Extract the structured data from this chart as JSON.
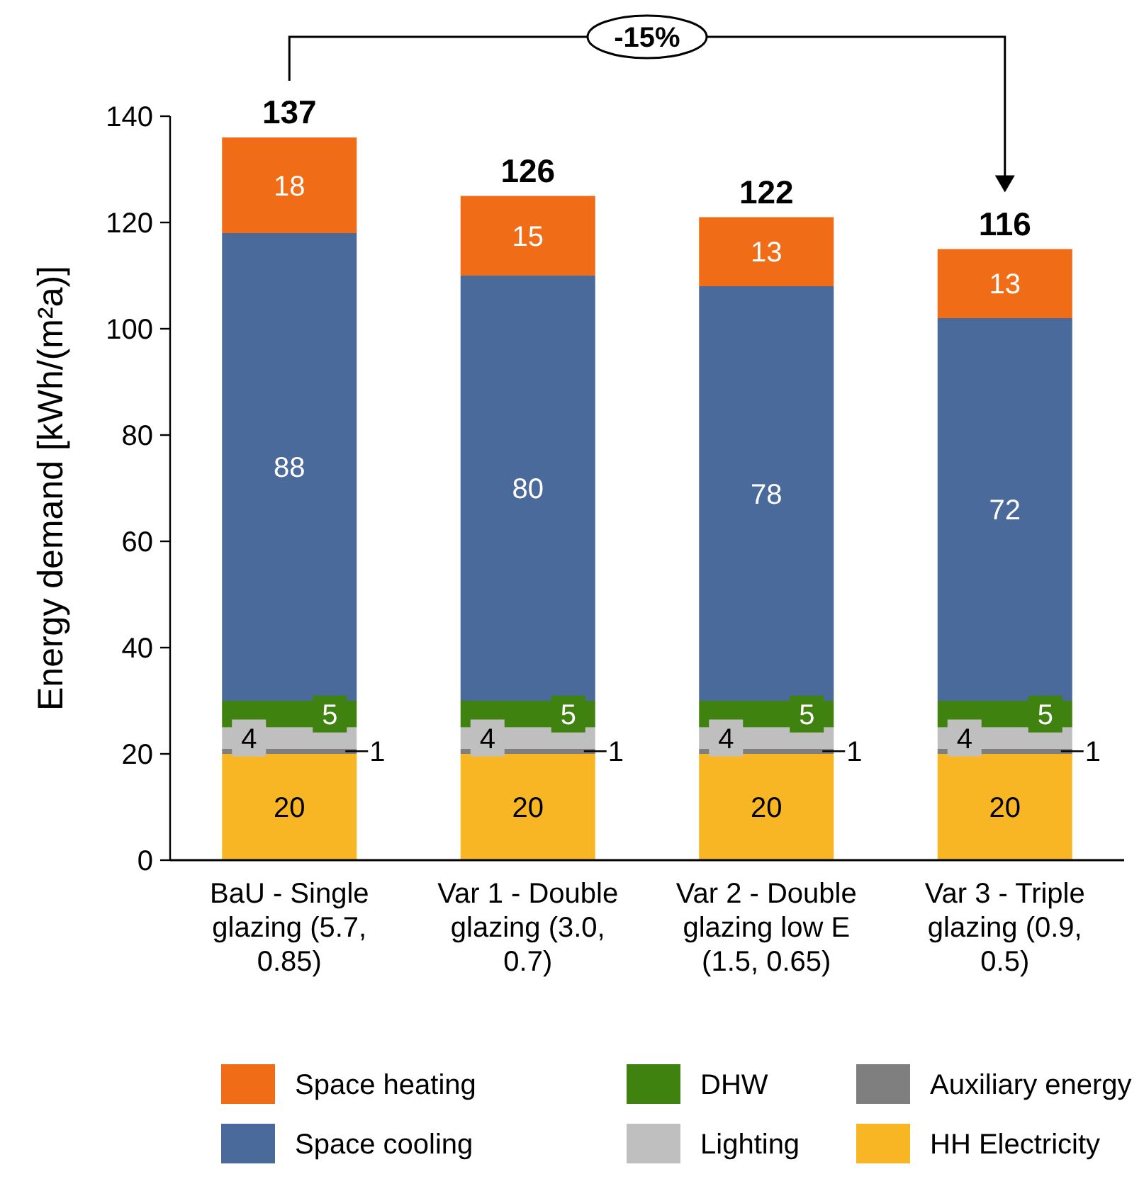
{
  "chart_data": {
    "type": "bar",
    "stacked": true,
    "ylabel": "Energy demand [kWh/(m²a)]",
    "categories": [
      "BaU - Single glazing (5.7, 0.85)",
      "Var 1 - Double glazing (3.0, 0.7)",
      "Var 2 - Double glazing low E (1.5, 0.65)",
      "Var 3 - Triple glazing (0.9, 0.5)"
    ],
    "series": [
      {
        "name": "HH Electricity",
        "color": "#f8b625",
        "values": [
          20,
          20,
          20,
          20
        ]
      },
      {
        "name": "Auxiliary energy",
        "color": "#7f7f7f",
        "values": [
          1,
          1,
          1,
          1
        ]
      },
      {
        "name": "Lighting",
        "color": "#bfbfbf",
        "values": [
          4,
          4,
          4,
          4
        ]
      },
      {
        "name": "DHW",
        "color": "#3f8210",
        "values": [
          5,
          5,
          5,
          5
        ]
      },
      {
        "name": "Space cooling",
        "color": "#4a6a9b",
        "values": [
          88,
          80,
          78,
          72
        ]
      },
      {
        "name": "Space heating",
        "color": "#f06c16",
        "values": [
          18,
          15,
          13,
          13
        ]
      }
    ],
    "ylim": [
      0,
      140
    ],
    "yticks": [
      0,
      20,
      40,
      60,
      80,
      100,
      120,
      140
    ],
    "grid": false,
    "legend": "bottom",
    "data_labels": true,
    "totals": [
      "137",
      "126",
      "122",
      "116"
    ],
    "annotations": [
      "-15%"
    ]
  }
}
